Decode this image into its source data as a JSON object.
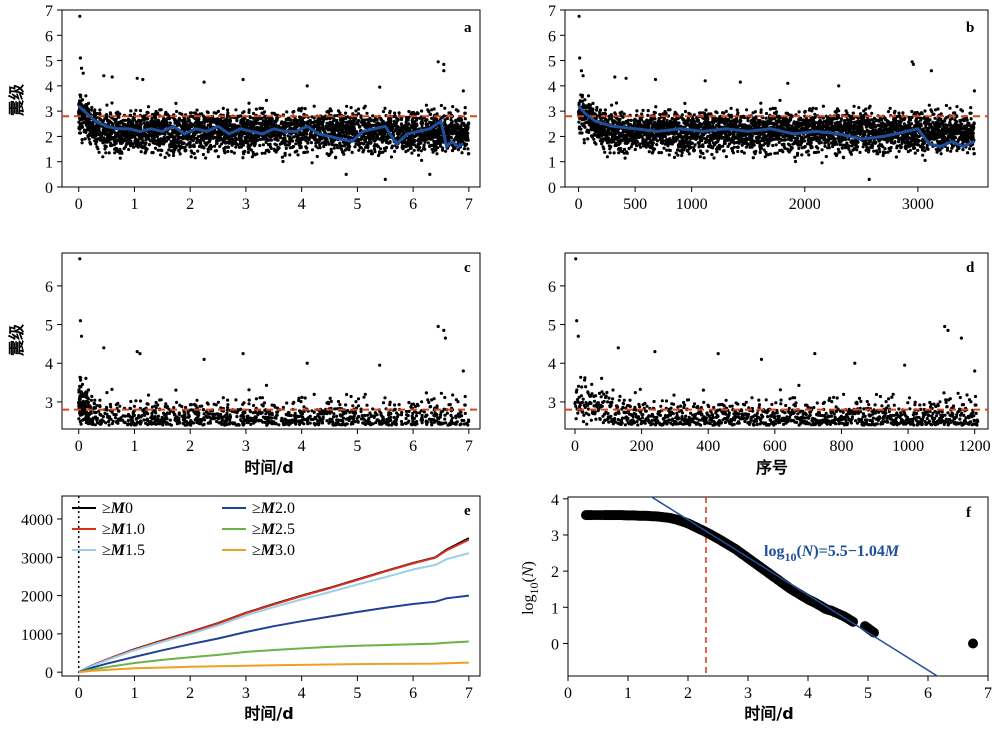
{
  "chart_data": [
    {
      "panel": "a",
      "type": "scatter",
      "label": "a",
      "xlabel": "",
      "ylabel": "震级",
      "xlim": [
        -0.3,
        7.2
      ],
      "ylim": [
        0,
        7
      ],
      "xticks": [
        "0",
        "1",
        "2",
        "3",
        "4",
        "5",
        "6",
        "7"
      ],
      "yticks": [
        "0",
        "1",
        "2",
        "3",
        "4",
        "5",
        "6",
        "7"
      ],
      "reference_line": {
        "y": 2.8,
        "color": "#d9461c",
        "style": "dashed"
      },
      "scatter_description": "about 3500 events, magnitudes mostly 1-3.5 (M vs time in days)",
      "outlier_points": [
        [
          0.02,
          6.75
        ],
        [
          0.03,
          5.1
        ],
        [
          0.05,
          4.7
        ],
        [
          0.08,
          4.5
        ],
        [
          0.45,
          4.4
        ],
        [
          0.6,
          4.35
        ],
        [
          1.05,
          4.3
        ],
        [
          1.15,
          4.25
        ],
        [
          2.25,
          4.15
        ],
        [
          2.95,
          4.25
        ],
        [
          4.1,
          4.0
        ],
        [
          5.4,
          3.95
        ],
        [
          6.45,
          4.95
        ],
        [
          6.55,
          4.85
        ],
        [
          6.55,
          4.6
        ],
        [
          6.9,
          3.8
        ],
        [
          5.5,
          0.3
        ],
        [
          4.8,
          0.5
        ],
        [
          6.3,
          0.5
        ]
      ],
      "series": [
        {
          "name": "",
          "color": "#1f4e9a",
          "x": [
            0,
            0.1,
            0.2,
            0.3,
            0.5,
            0.7,
            0.9,
            1.1,
            1.3,
            1.5,
            1.7,
            1.9,
            2.1,
            2.3,
            2.5,
            2.7,
            2.9,
            3.1,
            3.3,
            3.5,
            3.7,
            3.9,
            4.1,
            4.3,
            4.5,
            4.7,
            4.9,
            5.1,
            5.3,
            5.5,
            5.7,
            5.9,
            6.1,
            6.3,
            6.5,
            6.6,
            6.7,
            6.8,
            6.9
          ],
          "y": [
            3.2,
            3.0,
            2.8,
            2.6,
            2.4,
            2.3,
            2.3,
            2.2,
            2.3,
            2.2,
            2.4,
            2.1,
            2.3,
            2.2,
            2.4,
            2.1,
            2.3,
            2.2,
            2.1,
            2.3,
            2.2,
            2.2,
            2.4,
            2.1,
            2.0,
            1.9,
            1.8,
            2.2,
            2.3,
            2.4,
            1.7,
            2.1,
            2.2,
            2.3,
            2.6,
            1.6,
            1.8,
            1.6,
            1.7
          ]
        }
      ]
    },
    {
      "panel": "b",
      "type": "scatter",
      "label": "b",
      "xlabel": "",
      "ylabel": "",
      "xlim": [
        -120,
        3620
      ],
      "ylim": [
        0,
        7
      ],
      "xticks": [
        "0",
        "500",
        "1000",
        "2000",
        "3000"
      ],
      "xtick_values": [
        0,
        500,
        1000,
        2000,
        3000
      ],
      "yticks": [
        "0",
        "1",
        "2",
        "3",
        "4",
        "5",
        "6",
        "7"
      ],
      "reference_line": {
        "y": 2.8,
        "color": "#d9461c",
        "style": "dashed"
      },
      "scatter_description": "same events plotted against event number",
      "outlier_points": [
        [
          5,
          6.75
        ],
        [
          10,
          5.1
        ],
        [
          25,
          4.6
        ],
        [
          40,
          4.4
        ],
        [
          320,
          4.35
        ],
        [
          420,
          4.3
        ],
        [
          680,
          4.25
        ],
        [
          1120,
          4.2
        ],
        [
          1430,
          4.15
        ],
        [
          1850,
          4.1
        ],
        [
          2300,
          4.0
        ],
        [
          2570,
          0.3
        ],
        [
          2950,
          4.95
        ],
        [
          2960,
          4.85
        ],
        [
          3120,
          4.6
        ],
        [
          3500,
          3.8
        ]
      ],
      "series": [
        {
          "name": "",
          "color": "#1f4e9a",
          "x": [
            0,
            60,
            150,
            300,
            500,
            700,
            900,
            1100,
            1300,
            1500,
            1700,
            1900,
            2100,
            2300,
            2500,
            2700,
            2900,
            3000,
            3100,
            3200,
            3300,
            3400,
            3500
          ],
          "y": [
            3.2,
            2.9,
            2.6,
            2.4,
            2.3,
            2.2,
            2.3,
            2.2,
            2.3,
            2.2,
            2.3,
            2.1,
            2.2,
            2.1,
            1.9,
            2.0,
            2.2,
            2.3,
            1.7,
            1.6,
            1.8,
            1.6,
            1.8
          ]
        }
      ]
    },
    {
      "panel": "c",
      "type": "scatter",
      "label": "c",
      "xlabel": "时间/d",
      "ylabel": "震级",
      "xlim": [
        -0.3,
        7.2
      ],
      "ylim": [
        2.3,
        6.85
      ],
      "xticks": [
        "0",
        "1",
        "2",
        "3",
        "4",
        "5",
        "6",
        "7"
      ],
      "yticks": [
        "3",
        "4",
        "5",
        "6"
      ],
      "reference_line": {
        "y": 2.8,
        "color": "#d9461c",
        "style": "dashed"
      },
      "scatter_description": "events with M >= 2.4 vs time",
      "outlier_points": [
        [
          0.02,
          6.7
        ],
        [
          0.03,
          5.1
        ],
        [
          0.05,
          4.7
        ],
        [
          0.45,
          4.4
        ],
        [
          1.05,
          4.3
        ],
        [
          1.1,
          4.25
        ],
        [
          2.25,
          4.1
        ],
        [
          2.95,
          4.25
        ],
        [
          4.1,
          4.0
        ],
        [
          5.4,
          3.95
        ],
        [
          6.45,
          4.95
        ],
        [
          6.55,
          4.85
        ],
        [
          6.58,
          4.65
        ],
        [
          6.9,
          3.8
        ]
      ]
    },
    {
      "panel": "d",
      "type": "scatter",
      "label": "d",
      "xlabel": "序号",
      "ylabel": "",
      "xlim": [
        -30,
        1240
      ],
      "ylim": [
        2.3,
        6.85
      ],
      "xticks": [
        "0",
        "200",
        "400",
        "600",
        "800",
        "1000",
        "1200"
      ],
      "yticks": [
        "3",
        "4",
        "5",
        "6"
      ],
      "reference_line": {
        "y": 2.8,
        "color": "#d9461c",
        "style": "dashed"
      },
      "scatter_description": "events with M >= 2.4 vs event number",
      "outlier_points": [
        [
          2,
          6.7
        ],
        [
          5,
          5.1
        ],
        [
          10,
          4.7
        ],
        [
          130,
          4.4
        ],
        [
          240,
          4.3
        ],
        [
          430,
          4.25
        ],
        [
          560,
          4.1
        ],
        [
          720,
          4.25
        ],
        [
          840,
          4.0
        ],
        [
          990,
          3.95
        ],
        [
          1110,
          4.95
        ],
        [
          1120,
          4.85
        ],
        [
          1160,
          4.65
        ],
        [
          1200,
          3.8
        ]
      ]
    },
    {
      "panel": "e",
      "type": "line",
      "label": "e",
      "xlabel": "时间/d",
      "ylabel": "",
      "xlim": [
        -0.3,
        7.2
      ],
      "ylim": [
        -100,
        4600
      ],
      "xticks": [
        "0",
        "1",
        "2",
        "3",
        "4",
        "5",
        "6",
        "7"
      ],
      "yticks": [
        "0",
        "1000",
        "2000",
        "3000",
        "4000"
      ],
      "vertical_marker": {
        "x": 0,
        "style": "dotted"
      },
      "legend_position": "top-left",
      "legend": [
        {
          "prefix": "≥",
          "italic": "M",
          "suffix": "0",
          "color": "#000000"
        },
        {
          "prefix": "≥",
          "italic": "M",
          "suffix": "1.0",
          "color": "#d9321c"
        },
        {
          "prefix": "≥",
          "italic": "M",
          "suffix": "1.5",
          "color": "#9ecfe8"
        },
        {
          "prefix": "≥",
          "italic": "M",
          "suffix": "2.0",
          "color": "#1f3f9a"
        },
        {
          "prefix": "≥",
          "italic": "M",
          "suffix": "2.5",
          "color": "#6ab344"
        },
        {
          "prefix": "≥",
          "italic": "M",
          "suffix": "3.0",
          "color": "#f0a020"
        }
      ],
      "x": [
        0,
        0.2,
        0.5,
        1,
        1.5,
        2,
        2.5,
        3,
        3.5,
        4,
        4.5,
        5,
        5.5,
        6,
        6.4,
        6.6,
        7
      ],
      "series": [
        {
          "name": "≥M0",
          "color": "#000000",
          "values": [
            0,
            150,
            330,
            600,
            830,
            1050,
            1280,
            1550,
            1780,
            2000,
            2200,
            2420,
            2640,
            2850,
            3000,
            3200,
            3500
          ]
        },
        {
          "name": "≥M1.0",
          "color": "#d9321c",
          "values": [
            0,
            145,
            325,
            590,
            820,
            1040,
            1270,
            1540,
            1770,
            1990,
            2190,
            2410,
            2630,
            2840,
            2990,
            3180,
            3460
          ]
        },
        {
          "name": "≥M1.5",
          "color": "#9ecfe8",
          "values": [
            0,
            140,
            310,
            570,
            790,
            1000,
            1220,
            1480,
            1700,
            1900,
            2090,
            2290,
            2480,
            2680,
            2800,
            2950,
            3110
          ]
        },
        {
          "name": "≥M2.0",
          "color": "#1f3f9a",
          "values": [
            0,
            100,
            220,
            400,
            570,
            730,
            880,
            1050,
            1200,
            1330,
            1450,
            1570,
            1680,
            1780,
            1840,
            1930,
            2000
          ]
        },
        {
          "name": "≥M2.5",
          "color": "#6ab344",
          "values": [
            0,
            60,
            130,
            240,
            320,
            390,
            450,
            530,
            580,
            620,
            660,
            690,
            710,
            730,
            745,
            770,
            800
          ]
        },
        {
          "name": "≥M3.0",
          "color": "#f0a020",
          "values": [
            0,
            30,
            60,
            100,
            120,
            140,
            155,
            170,
            180,
            190,
            200,
            210,
            215,
            220,
            225,
            235,
            250
          ]
        }
      ]
    },
    {
      "panel": "f",
      "type": "scatter",
      "label": "f",
      "xlabel": "时间/d",
      "ylabel": "log10(N)",
      "ylabel_parts": {
        "base": "log",
        "sub": "10",
        "arg": "N"
      },
      "xlim": [
        0,
        7
      ],
      "ylim": [
        -0.9,
        4.05
      ],
      "xticks": [
        "0",
        "1",
        "2",
        "3",
        "4",
        "5",
        "6",
        "7"
      ],
      "yticks": [
        "0",
        "1",
        "2",
        "3",
        "4"
      ],
      "cutoff_line": {
        "x": 2.3,
        "color": "#d9321c",
        "style": "dashed"
      },
      "fit": {
        "intercept": 5.5,
        "slope": -1.04,
        "color": "#1f4e9a",
        "equation": {
          "pre": "log",
          "sub": "10",
          "mid": "(",
          "var": "N",
          "post": ")=5.5−1.04",
          "var2": "M"
        }
      },
      "points_x": [
        0.3,
        0.4,
        0.6,
        0.7,
        0.8,
        0.9,
        1.0,
        1.1,
        1.2,
        1.3,
        1.4,
        1.5,
        1.6,
        1.7,
        1.8,
        1.9,
        2.0,
        2.1,
        2.2,
        2.3,
        2.4,
        2.5,
        2.6,
        2.7,
        2.8,
        2.9,
        3.0,
        3.1,
        3.2,
        3.3,
        3.4,
        3.5,
        3.6,
        3.7,
        3.8,
        3.9,
        4.0,
        4.1,
        4.2,
        4.3,
        4.4,
        4.6,
        4.75,
        4.95,
        5.1,
        6.75
      ],
      "points_y": [
        3.55,
        3.55,
        3.55,
        3.55,
        3.55,
        3.55,
        3.54,
        3.54,
        3.53,
        3.53,
        3.52,
        3.51,
        3.49,
        3.47,
        3.43,
        3.38,
        3.32,
        3.24,
        3.16,
        3.08,
        2.99,
        2.9,
        2.8,
        2.7,
        2.6,
        2.48,
        2.36,
        2.24,
        2.12,
        2.0,
        1.88,
        1.76,
        1.64,
        1.52,
        1.42,
        1.32,
        1.22,
        1.14,
        1.05,
        0.95,
        0.9,
        0.75,
        0.6,
        0.48,
        0.3,
        0.0
      ]
    }
  ]
}
